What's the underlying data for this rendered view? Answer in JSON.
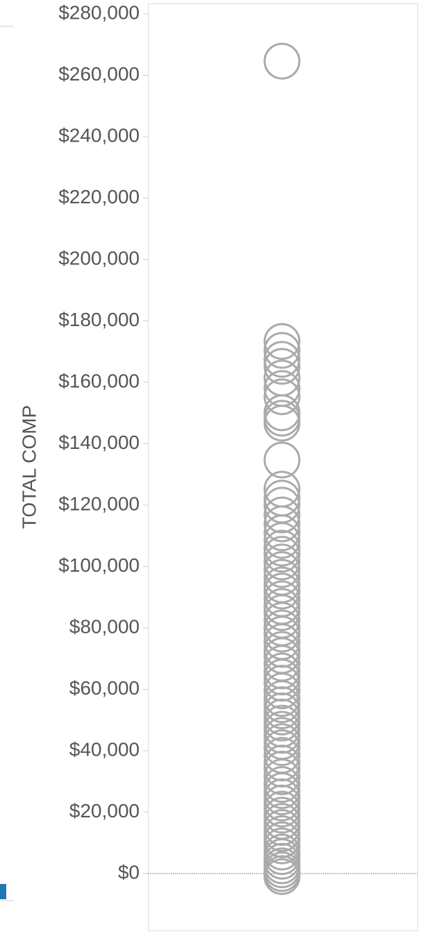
{
  "chart_data": {
    "type": "strip",
    "y_label": "TOTAL COMP",
    "color": "#aaaaaa",
    "ylim": [
      -18760,
      283400
    ],
    "yticks": [
      {
        "value": 0,
        "label": "$0"
      },
      {
        "value": 20000,
        "label": "$20,000"
      },
      {
        "value": 40000,
        "label": "$40,000"
      },
      {
        "value": 60000,
        "label": "$60,000"
      },
      {
        "value": 80000,
        "label": "$80,000"
      },
      {
        "value": 100000,
        "label": "$100,000"
      },
      {
        "value": 120000,
        "label": "$120,000"
      },
      {
        "value": 140000,
        "label": "$140,000"
      },
      {
        "value": 160000,
        "label": "$160,000"
      },
      {
        "value": 180000,
        "label": "$180,000"
      },
      {
        "value": 200000,
        "label": "$200,000"
      },
      {
        "value": 220000,
        "label": "$220,000"
      },
      {
        "value": 240000,
        "label": "$240,000"
      },
      {
        "value": 260000,
        "label": "$260,000"
      },
      {
        "value": 280000,
        "label": "$280,000"
      }
    ],
    "values": [
      264600,
      173300,
      170400,
      167500,
      165200,
      161400,
      158000,
      155300,
      150100,
      148300,
      146700,
      134700,
      125200,
      122300,
      120000,
      116800,
      113900,
      111000,
      108500,
      106000,
      104000,
      101500,
      99000,
      96500,
      94000,
      92000,
      89500,
      87000,
      85000,
      82500,
      80000,
      78000,
      75500,
      73000,
      71000,
      68500,
      66000,
      64000,
      62000,
      59500,
      57000,
      55000,
      53000,
      51000,
      49000,
      47000,
      45000,
      43000,
      41000,
      38500,
      36000,
      34000,
      31500,
      29000,
      27000,
      25000,
      23000,
      21000,
      19000,
      17000,
      15000,
      13000,
      11000,
      9000,
      7000,
      5500,
      4000,
      2500,
      1200,
      0,
      -1000
    ]
  }
}
